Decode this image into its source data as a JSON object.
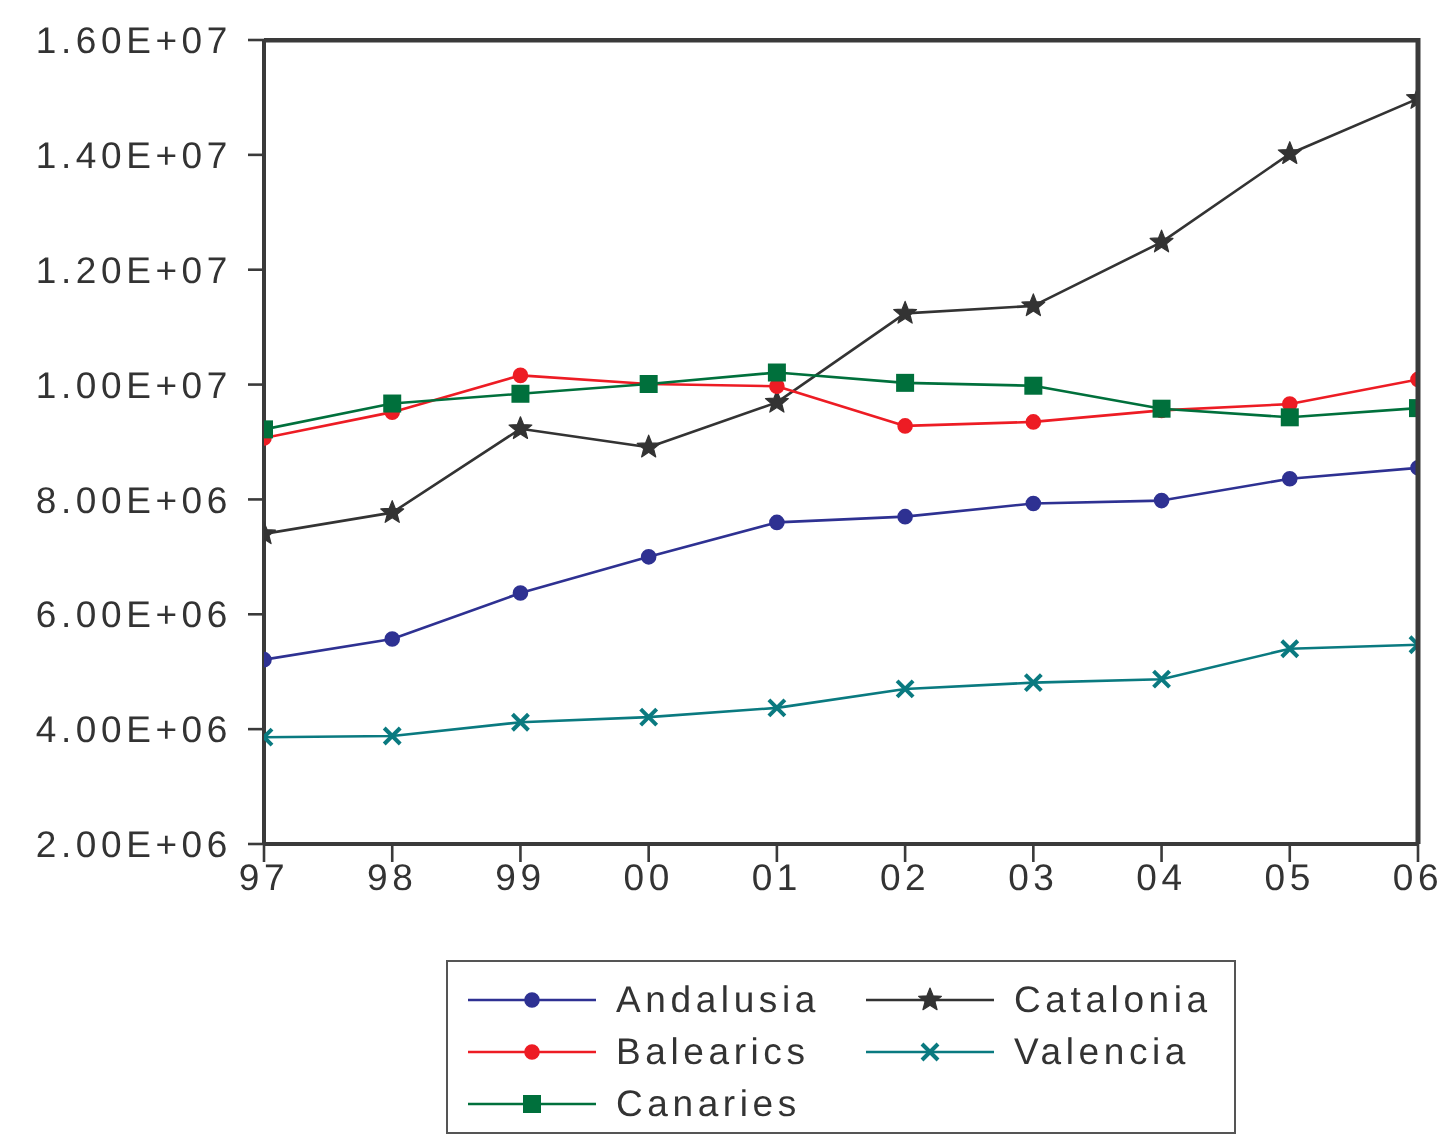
{
  "chart_data": {
    "type": "line",
    "categories": [
      "97",
      "98",
      "99",
      "00",
      "01",
      "02",
      "03",
      "04",
      "05",
      "06"
    ],
    "series": [
      {
        "name": "Andalusia",
        "color": "#2e3192",
        "marker": "circle",
        "values": [
          5210000,
          5570000,
          6370000,
          7000000,
          7600000,
          7700000,
          7930000,
          7980000,
          8360000,
          8550000
        ]
      },
      {
        "name": "Catalonia",
        "color": "#333333",
        "marker": "star",
        "values": [
          7400000,
          7770000,
          9230000,
          8910000,
          9690000,
          11240000,
          11370000,
          12480000,
          14020000,
          14980000
        ]
      },
      {
        "name": "Balearics",
        "color": "#ed1c24",
        "marker": "circle",
        "values": [
          9070000,
          9520000,
          10160000,
          10010000,
          9970000,
          9280000,
          9350000,
          9550000,
          9660000,
          10090000
        ]
      },
      {
        "name": "Valencia",
        "color": "#0a7a80",
        "marker": "cross",
        "values": [
          3860000,
          3880000,
          4120000,
          4210000,
          4370000,
          4700000,
          4810000,
          4870000,
          5400000,
          5470000
        ]
      },
      {
        "name": "Canaries",
        "color": "#00703c",
        "marker": "square",
        "values": [
          9220000,
          9670000,
          9840000,
          10010000,
          10210000,
          10030000,
          9980000,
          9580000,
          9430000,
          9590000
        ]
      }
    ],
    "ylim": [
      2000000,
      16000000
    ],
    "yticks": [
      {
        "value": 2000000,
        "label": "2.00E+06"
      },
      {
        "value": 4000000,
        "label": "4.00E+06"
      },
      {
        "value": 6000000,
        "label": "6.00E+06"
      },
      {
        "value": 8000000,
        "label": "8.00E+06"
      },
      {
        "value": 10000000,
        "label": "1.00E+07"
      },
      {
        "value": 12000000,
        "label": "1.20E+07"
      },
      {
        "value": 14000000,
        "label": "1.40E+07"
      },
      {
        "value": 16000000,
        "label": "1.60E+07"
      }
    ],
    "grid": false,
    "legend": "bottom",
    "line_style": "solid"
  }
}
